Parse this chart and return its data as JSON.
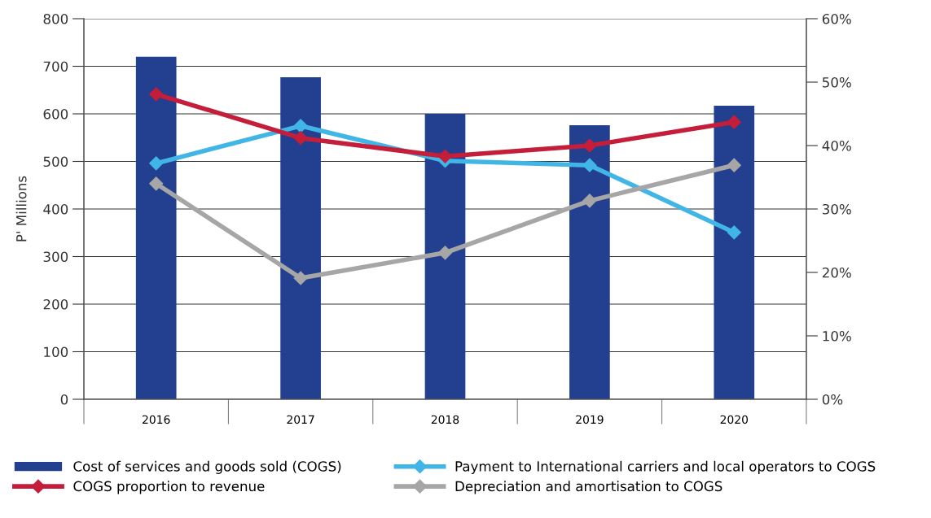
{
  "chart_data": {
    "type": "bar",
    "categories": [
      "2016",
      "2017",
      "2018",
      "2019",
      "2020"
    ],
    "ylabel": "P' Millions",
    "series": [
      {
        "name": "Cost of services and goods sold (COGS)",
        "color": "#233f8f",
        "values": [
          720,
          677,
          600,
          576,
          617
        ]
      },
      {
        "name": "Payment to International carriers and local operators to COGS",
        "type": "line",
        "axis": "y2",
        "color": "#41b6e6",
        "values": [
          37.2,
          43.1,
          37.6,
          36.9,
          26.3
        ]
      },
      {
        "name": "COGS proportion to revenue",
        "type": "line",
        "axis": "y2",
        "color": "#c41e3a",
        "values": [
          48.1,
          41.2,
          38.3,
          40.0,
          43.7
        ]
      },
      {
        "name": "Depreciation and amortisation to COGS",
        "type": "line",
        "axis": "y2",
        "color": "#a6a6a6",
        "values": [
          34.0,
          19.1,
          23.1,
          31.3,
          36.9
        ]
      }
    ],
    "ylim": [
      0,
      800
    ],
    "yticks": [
      0,
      100,
      200,
      300,
      400,
      500,
      600,
      700,
      800
    ],
    "y2lim": [
      0,
      60
    ],
    "y2ticks": [
      {
        "value": 0,
        "label": "0%"
      },
      {
        "value": 10,
        "label": "10%"
      },
      {
        "value": 20,
        "label": "20%"
      },
      {
        "value": 30,
        "label": "30%"
      },
      {
        "value": 40,
        "label": "40%"
      },
      {
        "value": 50,
        "label": "50%"
      },
      {
        "value": 60,
        "label": "60%"
      }
    ],
    "grid": "y",
    "legend": "bottom",
    "marker": "diamond",
    "line_style": "solid"
  }
}
